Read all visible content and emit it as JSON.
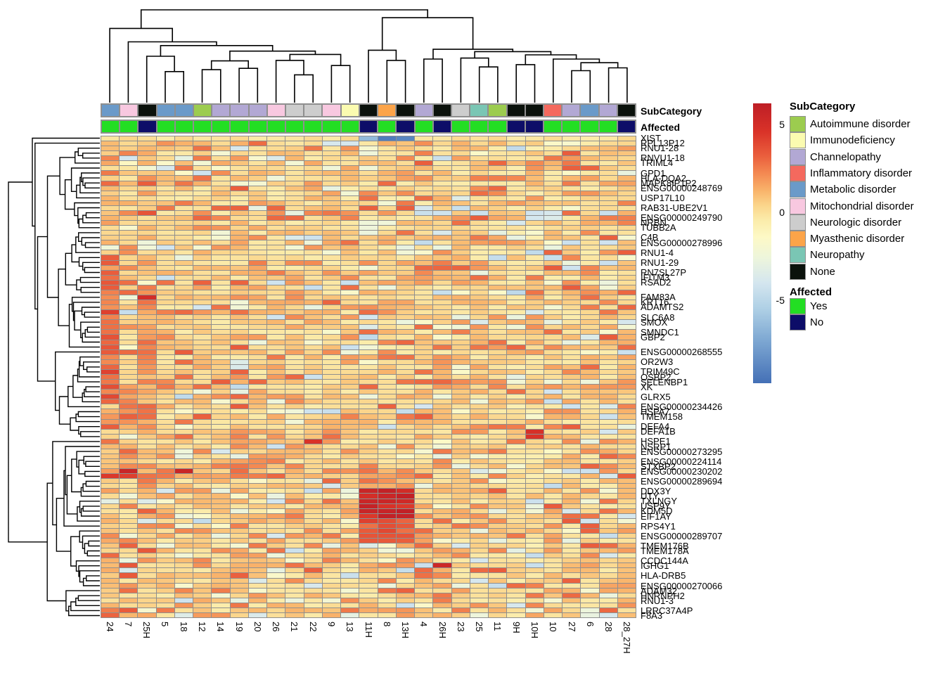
{
  "figure": {
    "background": "#FFFFFF"
  },
  "annotation_titles": {
    "subcategory": "SubCategory",
    "affected": "Affected"
  },
  "legend": {
    "subcategory": {
      "title": "SubCategory",
      "items": [
        {
          "label": "Autoimmune disorder",
          "color": "#9CCC4F"
        },
        {
          "label": "Immunodeficiency",
          "color": "#FBFBB0"
        },
        {
          "label": "Channelopathy",
          "color": "#B2A8D4"
        },
        {
          "label": "Inflammatory disorder",
          "color": "#F4695E"
        },
        {
          "label": "Metabolic disorder",
          "color": "#6A9AC9"
        },
        {
          "label": "Mitochondrial disorder",
          "color": "#F8C8E0"
        },
        {
          "label": "Neurologic disorder",
          "color": "#CDCDCD"
        },
        {
          "label": "Myasthenic disorder",
          "color": "#FCA449"
        },
        {
          "label": "Neuropathy",
          "color": "#7AC6B4"
        },
        {
          "label": "None",
          "color": "#0B120C"
        }
      ]
    },
    "affected": {
      "title": "Affected",
      "items": [
        {
          "label": "Yes",
          "color": "#23DE23"
        },
        {
          "label": "No",
          "color": "#0D0D68"
        }
      ]
    }
  },
  "chart_data": {
    "type": "heatmap",
    "n_rows": 97,
    "n_cols": 29,
    "columns": [
      "24",
      "7",
      "25H",
      "5",
      "18",
      "12",
      "14",
      "19",
      "20",
      "26",
      "21",
      "22",
      "9",
      "13",
      "11H",
      "8",
      "13H",
      "4",
      "26H",
      "23",
      "25",
      "11",
      "9H",
      "10H",
      "10",
      "27",
      "6",
      "28",
      "28_27H"
    ],
    "column_annotations": {
      "SubCategory": [
        "Metabolic disorder",
        "Mitochondrial disorder",
        "None",
        "Metabolic disorder",
        "Metabolic disorder",
        "Autoimmune disorder",
        "Channelopathy",
        "Channelopathy",
        "Channelopathy",
        "Mitochondrial disorder",
        "Neurologic disorder",
        "Neurologic disorder",
        "Mitochondrial disorder",
        "Immunodeficiency",
        "None",
        "Myasthenic disorder",
        "None",
        "Channelopathy",
        "None",
        "Neurologic disorder",
        "Neuropathy",
        "Autoimmune disorder",
        "None",
        "None",
        "Inflammatory disorder",
        "Channelopathy",
        "Metabolic disorder",
        "Channelopathy",
        "None"
      ],
      "Affected": [
        "Yes",
        "Yes",
        "No",
        "Yes",
        "Yes",
        "Yes",
        "Yes",
        "Yes",
        "Yes",
        "Yes",
        "Yes",
        "Yes",
        "Yes",
        "Yes",
        "No",
        "Yes",
        "No",
        "Yes",
        "No",
        "Yes",
        "Yes",
        "Yes",
        "No",
        "No",
        "Yes",
        "Yes",
        "Yes",
        "Yes",
        "No"
      ]
    },
    "annotation_colors": {
      "Autoimmune disorder": "#9CCC4F",
      "Immunodeficiency": "#FBFBB0",
      "Channelopathy": "#B2A8D4",
      "Inflammatory disorder": "#F4695E",
      "Metabolic disorder": "#6A9AC9",
      "Mitochondrial disorder": "#F8C8E0",
      "Neurologic disorder": "#CDCDCD",
      "Myasthenic disorder": "#FCA449",
      "Neuropathy": "#7AC6B4",
      "None": "#0B120C",
      "Yes": "#23DE23",
      "No": "#0D0D68"
    },
    "row_labels": [
      [
        0,
        "XIST"
      ],
      [
        1,
        "RPL13P12"
      ],
      [
        2,
        "RNU1-28"
      ],
      [
        4,
        "RNVU1-18"
      ],
      [
        5,
        "TRIML4"
      ],
      [
        7,
        "GPD1"
      ],
      [
        8,
        "HLA-DQA2"
      ],
      [
        9,
        "MAPK8IP1P2"
      ],
      [
        10,
        "ENSG00000248769"
      ],
      [
        12,
        "USP17L10"
      ],
      [
        14,
        "RAB31-UBE2V1"
      ],
      [
        16,
        "ENSG00000249790"
      ],
      [
        17,
        "NRBN"
      ],
      [
        18,
        "TUBB2A"
      ],
      [
        20,
        "C4B"
      ],
      [
        21,
        "ENSG00000278996"
      ],
      [
        23,
        "RNU1-4"
      ],
      [
        25,
        "RNU1-29"
      ],
      [
        27,
        "RN7SL27P"
      ],
      [
        28,
        "IFITM3"
      ],
      [
        29,
        "RSAD2"
      ],
      [
        32,
        "FAM83A"
      ],
      [
        33,
        "KRT16"
      ],
      [
        34,
        "ADAMTS2"
      ],
      [
        36,
        "SLC6A8"
      ],
      [
        37,
        "SMOX"
      ],
      [
        39,
        "SMNDC1"
      ],
      [
        40,
        "GBP2"
      ],
      [
        43,
        "ENSG00000268555"
      ],
      [
        45,
        "OR2W3"
      ],
      [
        47,
        "TRIM49C"
      ],
      [
        48,
        "OSBP2"
      ],
      [
        49,
        "SELENBP1"
      ],
      [
        50,
        "XK"
      ],
      [
        52,
        "GLRX5"
      ],
      [
        54,
        "ENSG00000234426"
      ],
      [
        55,
        "HSPA7"
      ],
      [
        56,
        "TMEM158"
      ],
      [
        58,
        "DEFA4"
      ],
      [
        59,
        "DEFA1B"
      ],
      [
        61,
        "HSPE1"
      ],
      [
        62,
        "NSRP1"
      ],
      [
        63,
        "ENSG00000273295"
      ],
      [
        65,
        "ENSG00000224114"
      ],
      [
        66,
        "STXBP2"
      ],
      [
        67,
        "ENSG00000230202"
      ],
      [
        69,
        "ENSG00000289694"
      ],
      [
        71,
        "DDX3Y"
      ],
      [
        72,
        "UTY"
      ],
      [
        73,
        "TXLNGY"
      ],
      [
        74,
        "USP9Y"
      ],
      [
        75,
        "KDM5D"
      ],
      [
        76,
        "EIF1AY"
      ],
      [
        78,
        "RPS4Y1"
      ],
      [
        80,
        "ENSG00000289707"
      ],
      [
        82,
        "TMEM176B"
      ],
      [
        83,
        "TMEM178A"
      ],
      [
        85,
        "CCDC144A"
      ],
      [
        86,
        "IGHG1"
      ],
      [
        88,
        "HLA-DRB5"
      ],
      [
        90,
        "ENSG00000270066"
      ],
      [
        91,
        "ADAM32"
      ],
      [
        92,
        "HNRNPH2"
      ],
      [
        93,
        "RNU1-3"
      ],
      [
        95,
        "LRRC37A4P"
      ],
      [
        96,
        "F8A3"
      ]
    ],
    "value_range": [
      -9.7,
      6.2
    ],
    "colorbar_ticks": [
      {
        "value": 5,
        "label": "5"
      },
      {
        "value": 0,
        "label": "0"
      },
      {
        "value": -5,
        "label": "-5"
      }
    ],
    "colormap_stops": [
      [
        6.2,
        "#BE1E26"
      ],
      [
        4.6,
        "#D93228"
      ],
      [
        3.2,
        "#EA5F3D"
      ],
      [
        2.2,
        "#F48A52"
      ],
      [
        1.2,
        "#F9B56C"
      ],
      [
        0.4,
        "#FBD58B"
      ],
      [
        -0.4,
        "#FBEBA9"
      ],
      [
        -1.4,
        "#FDF9C6"
      ],
      [
        -2.6,
        "#EDF5DC"
      ],
      [
        -4.0,
        "#D4E6EF"
      ],
      [
        -5.5,
        "#AECFE5"
      ],
      [
        -7.2,
        "#7FA9D3"
      ],
      [
        -9.7,
        "#4470B6"
      ]
    ],
    "noise": {
      "seed": 1234,
      "col_bias": [
        0.45,
        0.15,
        0.3,
        0,
        0,
        0,
        0,
        0,
        0,
        0,
        0,
        0,
        0,
        -0.1,
        0,
        0,
        0,
        0,
        0,
        0,
        0,
        0,
        -0.25,
        -0.25,
        0,
        0,
        0,
        0,
        0.15
      ]
    },
    "blocks": [
      {
        "r0": 0,
        "r1": 0,
        "c0": 0,
        "c1": 28,
        "v": 0.0,
        "j": 0.5
      },
      {
        "r0": 27,
        "r1": 53,
        "c0": 0,
        "c1": 0,
        "v": 3.1,
        "j": 1.3
      },
      {
        "r0": 30,
        "r1": 58,
        "c0": 2,
        "c1": 2,
        "v": 1.8,
        "j": 1.2
      },
      {
        "r0": 50,
        "r1": 57,
        "c0": 1,
        "c1": 1,
        "v": 2.2,
        "j": 1.6
      },
      {
        "r0": 66,
        "r1": 68,
        "c0": 0,
        "c1": 8,
        "v": 1.7,
        "j": 1.5
      },
      {
        "r0": 67,
        "r1": 70,
        "c0": 14,
        "c1": 16,
        "v": 1.8,
        "j": 1.0
      },
      {
        "r0": 71,
        "r1": 76,
        "c0": 14,
        "c1": 16,
        "v": 5.3,
        "j": 0.9
      },
      {
        "r0": 77,
        "r1": 81,
        "c0": 14,
        "c1": 16,
        "v": 3.6,
        "j": 0.8
      }
    ],
    "cells": [
      [
        0,
        14,
        -6.5
      ],
      [
        0,
        15,
        -9.2
      ],
      [
        0,
        16,
        -8.8
      ],
      [
        15,
        17,
        -4.4
      ],
      [
        15,
        18,
        -4.2
      ],
      [
        15,
        20,
        -4.3
      ],
      [
        15,
        23,
        -4.1
      ],
      [
        15,
        27,
        -4.4
      ],
      [
        32,
        2,
        5.0
      ],
      [
        67,
        1,
        5.6
      ],
      [
        67,
        4,
        5.6
      ],
      [
        68,
        0,
        4.4
      ],
      [
        68,
        1,
        4.2
      ],
      [
        59,
        23,
        4.8
      ],
      [
        60,
        23,
        4.6
      ],
      [
        61,
        11,
        4.6
      ],
      [
        86,
        18,
        5.4
      ],
      [
        88,
        13,
        -4.4
      ],
      [
        89,
        20,
        -3.9
      ],
      [
        93,
        4,
        -4.2
      ],
      [
        94,
        16,
        -4.3
      ],
      [
        96,
        8,
        -3.6
      ]
    ],
    "column_tree": {
      "h": 1.0,
      "c": [
        {
          "h": 0.8,
          "c": [
            0,
            {
              "h": 0.655,
              "c": [
                1,
                {
                  "h": 0.615,
                  "c": [
                    {
                      "h": 0.5,
                      "c": [
                        2,
                        {
                          "h": 0.335,
                          "c": [
                            3,
                            4
                          ]
                        }
                      ]
                    },
                    {
                      "h": 0.555,
                      "c": [
                        {
                          "h": 0.45,
                          "c": [
                            {
                              "h": 0.355,
                              "c": [
                                5,
                                6
                              ]
                            },
                            {
                              "h": 0.37,
                              "c": [
                                7,
                                8
                              ]
                            }
                          ]
                        },
                        {
                          "h": 0.52,
                          "c": [
                            {
                              "h": 0.455,
                              "c": [
                                9,
                                {
                                  "h": 0.3,
                                  "c": [
                                    10,
                                    11
                                  ]
                                }
                              ]
                            },
                            {
                              "h": 0.4,
                              "c": [
                                12,
                                13
                              ]
                            }
                          ]
                        }
                      ]
                    }
                  ]
                }
              ]
            }
          ]
        },
        {
          "h": 0.915,
          "c": [
            {
              "h": 0.565,
              "c": [
                14,
                {
                  "h": 0.455,
                  "c": [
                    15,
                    16
                  ]
                }
              ]
            },
            {
              "h": 0.575,
              "c": [
                {
                  "h": 0.47,
                  "c": [
                    17,
                    18
                  ]
                },
                {
                  "h": 0.55,
                  "c": [
                    {
                      "h": 0.48,
                      "c": [
                        19,
                        {
                          "h": 0.385,
                          "c": [
                            20,
                            21
                          ]
                        }
                      ]
                    },
                    {
                      "h": 0.515,
                      "c": [
                        {
                          "h": 0.41,
                          "c": [
                            22,
                            23
                          ]
                        },
                        {
                          "h": 0.47,
                          "c": [
                            24,
                            {
                              "h": 0.43,
                              "c": [
                                {
                                  "h": 0.345,
                                  "c": [
                                    25,
                                    26
                                  ]
                                },
                                {
                                  "h": 0.375,
                                  "c": [
                                    27,
                                    28
                                  ]
                                }
                              ]
                            }
                          ]
                        }
                      ]
                    }
                  ]
                }
              ]
            }
          ]
        }
      ]
    },
    "row_tree": {
      "seed": 7,
      "first_split": 60
    }
  }
}
